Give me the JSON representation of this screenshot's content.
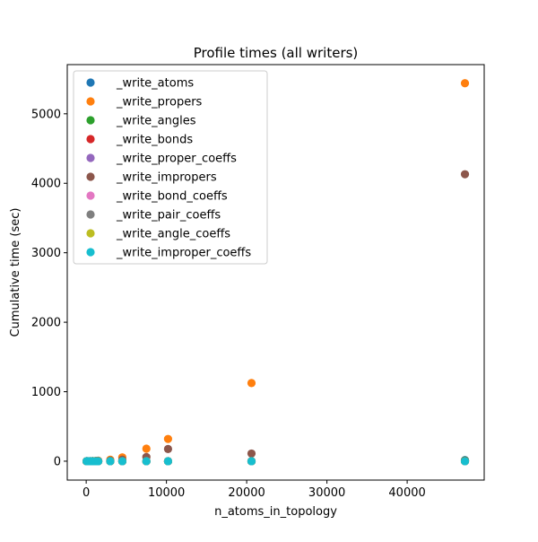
{
  "chart_data": {
    "type": "scatter",
    "title": "Profile times (all writers)",
    "xlabel": "n_atoms_in_topology",
    "ylabel": "Cumulative time (sec)",
    "xlim": [
      -2361,
      49599
    ],
    "ylim": [
      -272,
      5708
    ],
    "xticks": [
      0,
      10000,
      20000,
      30000,
      40000
    ],
    "yticks": [
      0,
      1000,
      2000,
      3000,
      4000,
      5000
    ],
    "grid": false,
    "legend_position": "upper-left",
    "x": [
      50,
      200,
      500,
      800,
      1200,
      1500,
      3000,
      4500,
      7500,
      10200,
      20600,
      47200
    ],
    "series": [
      {
        "name": "_write_atoms",
        "color": "#1f77b4",
        "values": [
          0,
          0,
          0,
          0,
          0,
          0,
          0,
          0,
          0,
          0,
          0,
          15
        ]
      },
      {
        "name": "_write_propers",
        "color": "#ff7f0e",
        "values": [
          0,
          0,
          0,
          2,
          5,
          8,
          20,
          55,
          180,
          320,
          1125,
          5440
        ]
      },
      {
        "name": "_write_angles",
        "color": "#2ca02c",
        "values": [
          0,
          0,
          0,
          0,
          0,
          0,
          0,
          0,
          0,
          0,
          0,
          10
        ]
      },
      {
        "name": "_write_bonds",
        "color": "#d62728",
        "values": [
          0,
          0,
          0,
          0,
          0,
          0,
          0,
          0,
          0,
          0,
          0,
          5
        ]
      },
      {
        "name": "_write_proper_coeffs",
        "color": "#9467bd",
        "values": [
          0,
          0,
          0,
          0,
          0,
          0,
          0,
          0,
          0,
          0,
          0,
          0
        ]
      },
      {
        "name": "_write_impropers",
        "color": "#8c564b",
        "values": [
          0,
          0,
          0,
          1,
          2,
          3,
          8,
          20,
          60,
          175,
          110,
          4130
        ]
      },
      {
        "name": "_write_bond_coeffs",
        "color": "#e377c2",
        "values": [
          0,
          0,
          0,
          0,
          0,
          0,
          0,
          0,
          0,
          0,
          0,
          0
        ]
      },
      {
        "name": "_write_pair_coeffs",
        "color": "#7f7f7f",
        "values": [
          0,
          0,
          0,
          0,
          0,
          0,
          0,
          0,
          0,
          0,
          0,
          0
        ]
      },
      {
        "name": "_write_angle_coeffs",
        "color": "#bcbd22",
        "values": [
          0,
          0,
          0,
          0,
          0,
          0,
          0,
          0,
          0,
          0,
          0,
          0
        ]
      },
      {
        "name": "_write_improper_coeffs",
        "color": "#17becf",
        "values": [
          0,
          0,
          0,
          0,
          0,
          0,
          0,
          0,
          0,
          0,
          0,
          0
        ]
      }
    ]
  }
}
